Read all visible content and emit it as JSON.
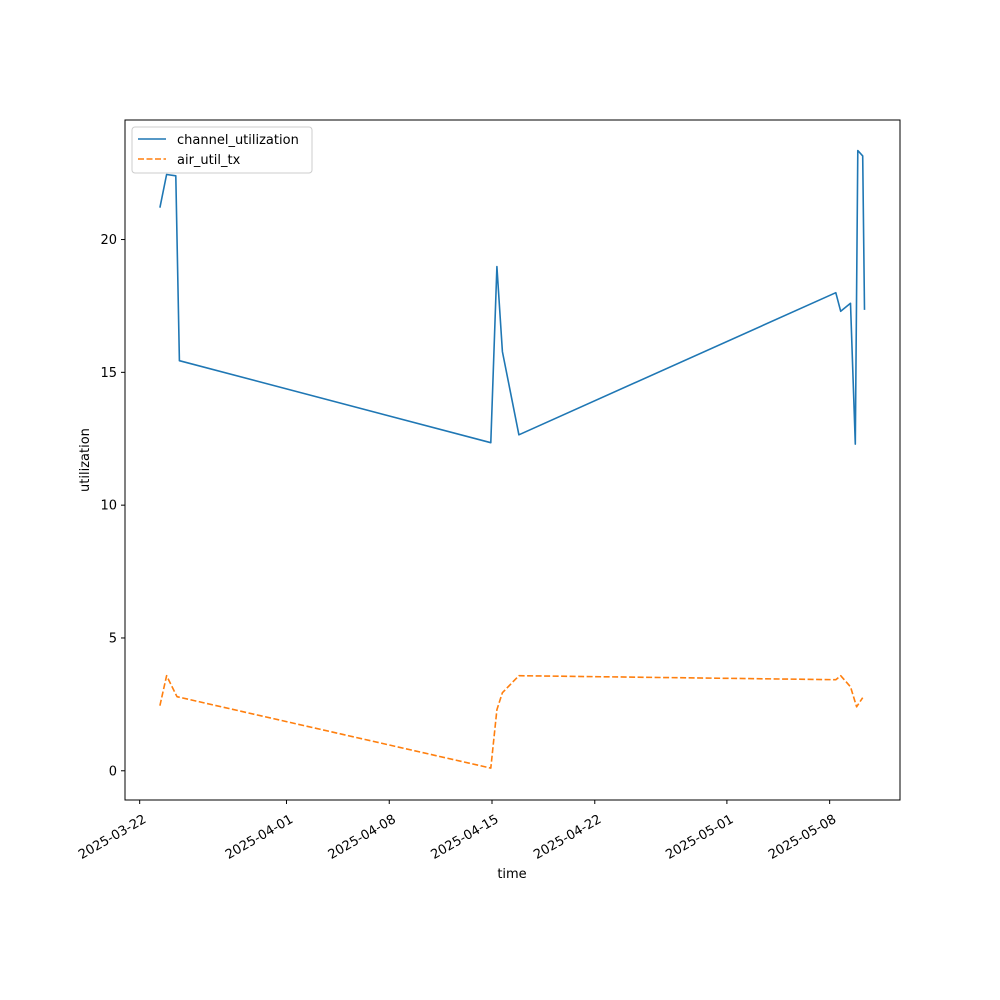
{
  "chart_data": {
    "type": "line",
    "title": "",
    "xlabel": "time",
    "ylabel": "utilization",
    "xlim": [
      "2025-03-21T00:00",
      "2025-05-12T19:00"
    ],
    "ylim": [
      -1.1,
      24.5
    ],
    "x_ticks": [
      "2025-03-22",
      "2025-04-01",
      "2025-04-08",
      "2025-04-15",
      "2025-04-22",
      "2025-05-01",
      "2025-05-08"
    ],
    "y_ticks": [
      0,
      5,
      10,
      15,
      20
    ],
    "grid": false,
    "legend_placement": "upper-left",
    "series": [
      {
        "name": "channel_utilization",
        "color": "#1f77b4",
        "style": "solid",
        "x": [
          "2025-03-23T09:00",
          "2025-03-23T20:00",
          "2025-03-24T11:00",
          "2025-03-24T17:00",
          "2025-04-14T22:00",
          "2025-04-15T08:00",
          "2025-04-15T17:00",
          "2025-04-16T20:00",
          "2025-05-08T10:00",
          "2025-05-08T18:00",
          "2025-05-09T10:00",
          "2025-05-09T18:00",
          "2025-05-09T22:00",
          "2025-05-10T06:00",
          "2025-05-10T09:00"
        ],
        "y": [
          21.2,
          22.45,
          22.4,
          15.44,
          12.35,
          18.98,
          15.78,
          12.65,
          18.0,
          17.3,
          17.6,
          12.3,
          23.35,
          23.15,
          17.35
        ]
      },
      {
        "name": "air_util_tx",
        "color": "#ff7f0e",
        "style": "dashed",
        "x": [
          "2025-03-23T09:00",
          "2025-03-23T20:00",
          "2025-03-24T13:00",
          "2025-04-14T22:00",
          "2025-04-15T08:00",
          "2025-04-15T17:00",
          "2025-04-16T20:00",
          "2025-05-08T10:00",
          "2025-05-08T18:00",
          "2025-05-09T10:00",
          "2025-05-09T20:00",
          "2025-05-10T06:00"
        ],
        "y": [
          2.45,
          3.58,
          2.79,
          0.1,
          2.3,
          2.94,
          3.58,
          3.43,
          3.58,
          3.16,
          2.41,
          2.75
        ]
      }
    ]
  }
}
